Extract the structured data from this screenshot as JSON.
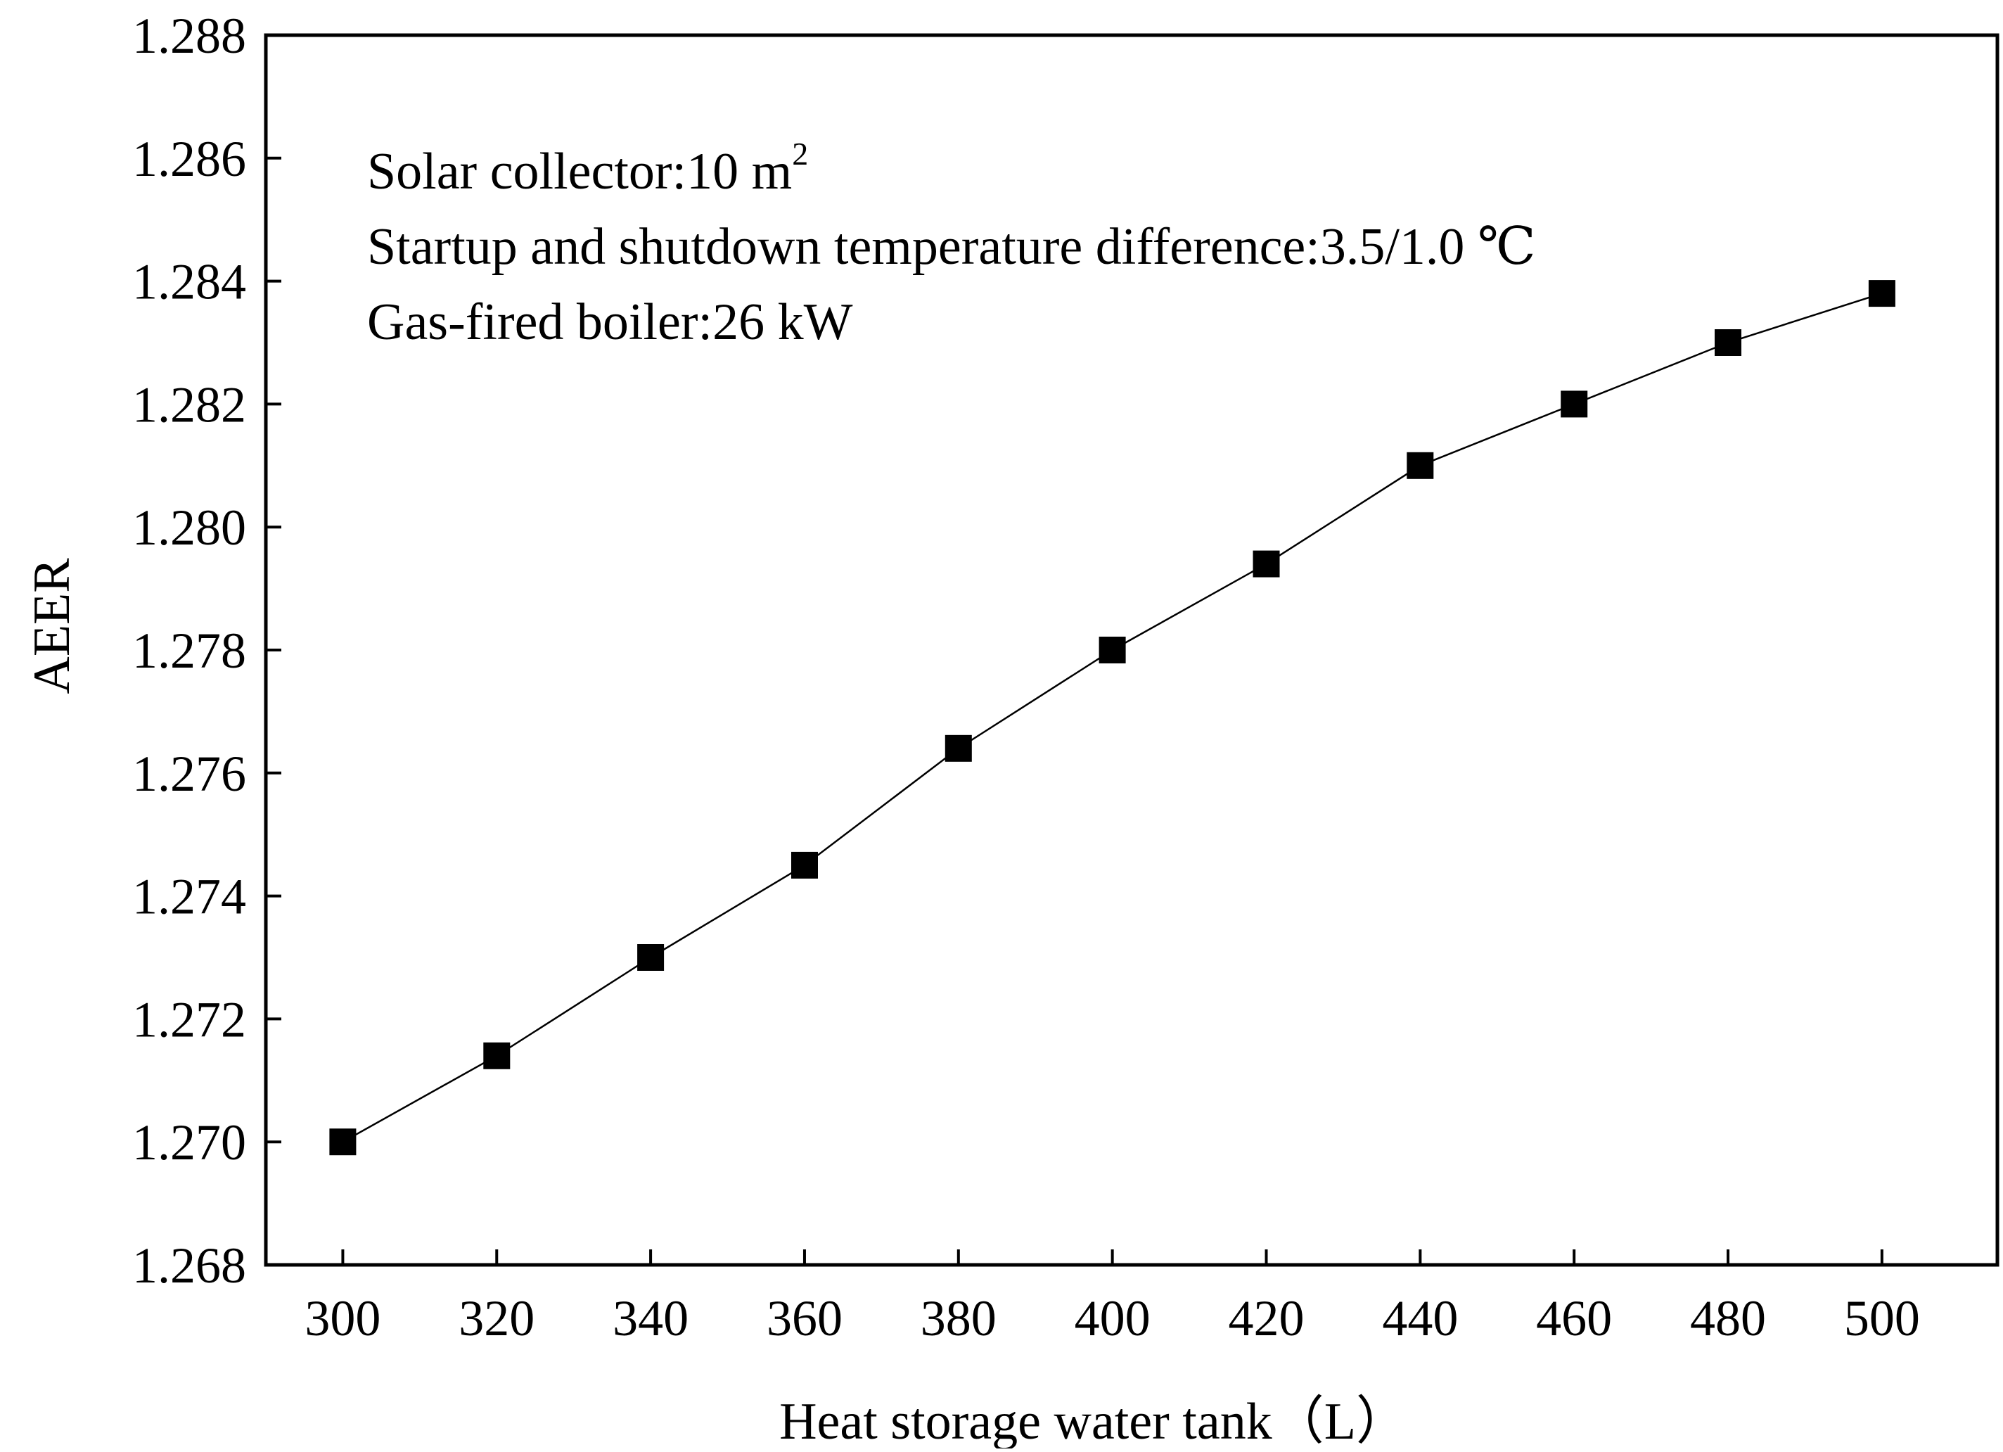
{
  "chart_data": {
    "type": "line",
    "title": "",
    "xlabel": "Heat storage water tank（L）",
    "ylabel": "AEER",
    "x": [
      300,
      320,
      340,
      360,
      380,
      400,
      420,
      440,
      460,
      480,
      500
    ],
    "series": [
      {
        "name": "AEER",
        "marker": "square",
        "values": [
          1.27,
          1.2714,
          1.273,
          1.2745,
          1.2764,
          1.278,
          1.2794,
          1.281,
          1.282,
          1.283,
          1.2838
        ]
      }
    ],
    "xlim": [
      290,
      515
    ],
    "ylim": [
      1.268,
      1.288
    ],
    "xticks": [
      300,
      320,
      340,
      360,
      380,
      400,
      420,
      440,
      460,
      480,
      500
    ],
    "xtick_labels": [
      "300",
      "320",
      "340",
      "360",
      "380",
      "400",
      "420",
      "440",
      "460",
      "480",
      "500"
    ],
    "yticks": [
      1.268,
      1.27,
      1.272,
      1.274,
      1.276,
      1.278,
      1.28,
      1.282,
      1.284,
      1.286,
      1.288
    ],
    "ytick_labels": [
      "1.268",
      "1.270",
      "1.272",
      "1.274",
      "1.276",
      "1.278",
      "1.280",
      "1.282",
      "1.284",
      "1.286",
      "1.288"
    ],
    "grid": false,
    "legend": "none",
    "annotations": {
      "line1_text": "Solar collector:10 m",
      "line1_superscript": "2",
      "line2_text": "Startup and shutdown temperature difference:3.5/1.0 ℃",
      "line3_text": "Gas-fired boiler:26 kW"
    },
    "colors": {
      "line": "#000000",
      "marker": "#000000",
      "axis": "#000000",
      "background": "#ffffff"
    }
  }
}
